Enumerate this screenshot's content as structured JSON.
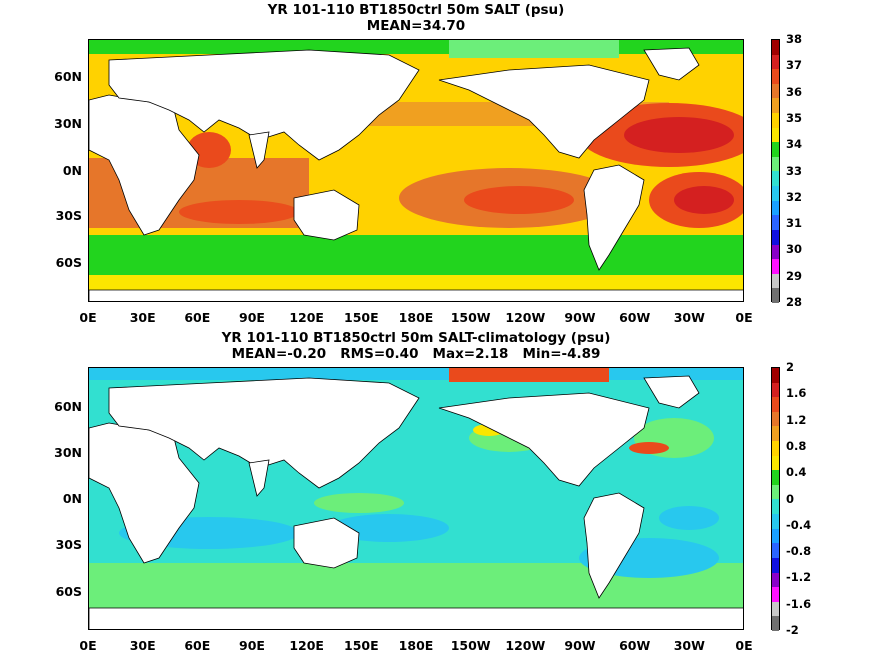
{
  "panels": [
    {
      "title": "YR 101-110 BT1850ctrl 50m SALT (psu)",
      "subtitle": "MEAN=34.70",
      "yticks": [
        "60N",
        "30N",
        "0N",
        "30S",
        "60S"
      ],
      "xticks": [
        "0E",
        "30E",
        "60E",
        "90E",
        "120E",
        "150E",
        "180E",
        "150W",
        "120W",
        "90W",
        "60W",
        "30W",
        "0E"
      ],
      "colorbar_labels": [
        "38",
        "37",
        "36",
        "35",
        "34",
        "33",
        "32",
        "31",
        "30",
        "29",
        "28"
      ],
      "colorbar_colors": [
        "#a00000",
        "#d42020",
        "#ea4a1c",
        "#e6762a",
        "#f0a020",
        "#ffd200",
        "#fbe600",
        "#22d41e",
        "#6cee7a",
        "#32e0d0",
        "#28c8ee",
        "#1aa0ff",
        "#2a64ff",
        "#1010e0",
        "#8a00c8",
        "#ff10ff",
        "#c8c8c8",
        "#707070"
      ]
    },
    {
      "title": "YR 101-110 BT1850ctrl 50m SALT-climatology (psu)",
      "subtitle": "MEAN=-0.20   RMS=0.40   Max=2.18   Min=-4.89",
      "yticks": [
        "60N",
        "30N",
        "0N",
        "30S",
        "60S"
      ],
      "xticks": [
        "0E",
        "30E",
        "60E",
        "90E",
        "120E",
        "150E",
        "180E",
        "150W",
        "120W",
        "90W",
        "60W",
        "30W",
        "0E"
      ],
      "colorbar_labels": [
        "2",
        "1.6",
        "1.2",
        "0.8",
        "0.4",
        "0",
        "-0.4",
        "-0.8",
        "-1.2",
        "-1.6",
        "-2"
      ],
      "colorbar_colors": [
        "#a00000",
        "#d42020",
        "#ea4a1c",
        "#e6762a",
        "#f0a020",
        "#ffd200",
        "#fbe600",
        "#22d41e",
        "#6cee7a",
        "#32e0d0",
        "#28c8ee",
        "#1aa0ff",
        "#2a64ff",
        "#1010e0",
        "#8a00c8",
        "#ff10ff",
        "#c8c8c8",
        "#707070"
      ]
    }
  ],
  "chart_data": [
    {
      "type": "heatmap",
      "title": "YR 101-110 BT1850ctrl 50m SALT (psu)",
      "subtitle": "MEAN=34.70",
      "variable": "SALT",
      "units": "psu",
      "depth": "50m",
      "mean": 34.7,
      "colorbar_range": [
        28,
        38
      ],
      "colorbar_ticks": [
        38,
        37,
        36,
        35,
        34,
        33,
        32,
        31,
        30,
        29,
        28
      ],
      "x_ticks": [
        "0E",
        "30E",
        "60E",
        "90E",
        "120E",
        "150E",
        "180E",
        "150W",
        "120W",
        "90W",
        "60W",
        "30W",
        "0E"
      ],
      "y_ticks": [
        "60N",
        "30N",
        "0N",
        "30S",
        "60S"
      ],
      "colors": {
        "land": "#ffffff",
        "coast": "#000000"
      }
    },
    {
      "type": "heatmap",
      "title": "YR 101-110 BT1850ctrl 50m SALT-climatology (psu)",
      "subtitle": "MEAN=-0.20   RMS=0.40   Max=2.18   Min=-4.89",
      "variable": "SALT-climatology",
      "units": "psu",
      "depth": "50m",
      "mean": -0.2,
      "rms": 0.4,
      "max": 2.18,
      "min": -4.89,
      "colorbar_range": [
        -2,
        2
      ],
      "colorbar_ticks": [
        2,
        1.6,
        1.2,
        0.8,
        0.4,
        0,
        -0.4,
        -0.8,
        -1.2,
        -1.6,
        -2
      ],
      "x_ticks": [
        "0E",
        "30E",
        "60E",
        "90E",
        "120E",
        "150E",
        "180E",
        "150W",
        "120W",
        "90W",
        "60W",
        "30W",
        "0E"
      ],
      "y_ticks": [
        "60N",
        "30N",
        "0N",
        "30S",
        "60S"
      ]
    }
  ]
}
